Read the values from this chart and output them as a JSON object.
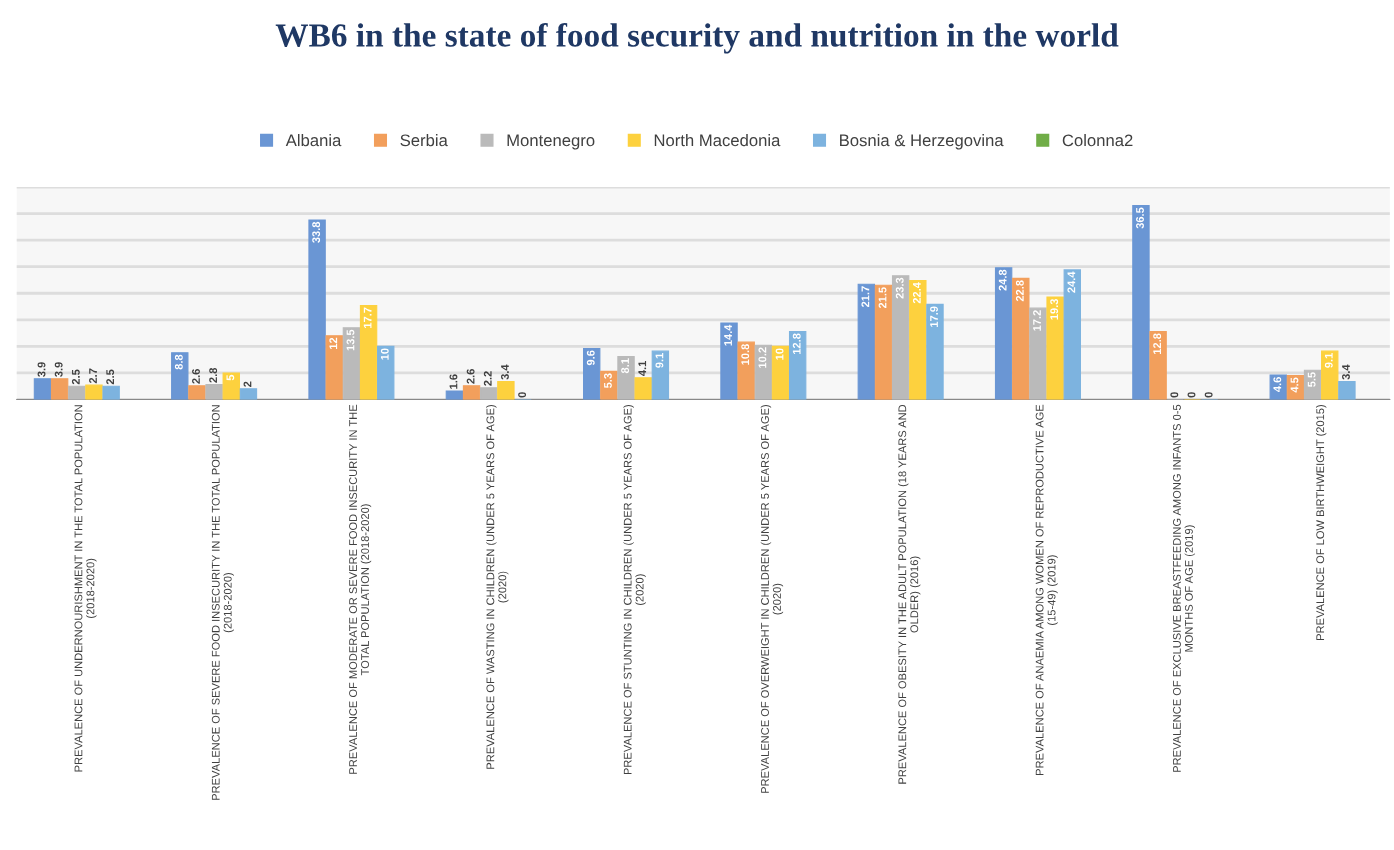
{
  "chart_data": {
    "type": "bar",
    "title": "WB6 in the state of food security and nutrition in the world",
    "categories": [
      "PREVALENCE OF UNDERNOURISHMENT IN THE TOTAL POPULATION\n(2018-2020)",
      "PREVALENCE OF SEVERE FOOD INSECURITY IN THE TOTAL POPULATION\n(2018-2020)",
      "PREVALENCE OF MODERATE OR SEVERE FOOD INSECURITY IN THE\nTOTAL POPULATION (2018-2020)",
      "PREVALENCE OF WASTING IN CHILDREN (UNDER 5 YEARS OF AGE)\n(2020)",
      "PREVALENCE OF STUNTING IN CHILDREN (UNDER 5 YEARS OF AGE)\n(2020)",
      "PREVALENCE OF OVERWEIGHT IN CHILDREN (UNDER 5 YEARS OF AGE)\n(2020)",
      "PREVALENCE OF OBESITY IN THE ADULT POPULATION (18 YEARS AND\nOLDER) (2016)",
      "PREVALENCE OF ANAEMIA AMONG WOMEN OF REPRODUCTIVE AGE\n(15-49) (2019)",
      "PREVALENCE OF EXCLUSIVE BREASTFEEDING AMONG INFANTS 0-5\nMONTHS OF AGE (2019)",
      "PREVALENCE OF LOW BIRTHWEIGHT (2015)"
    ],
    "series": [
      {
        "name": "Albania",
        "color": "#6a96d4",
        "values": [
          3.9,
          8.8,
          33.8,
          1.6,
          9.6,
          14.4,
          21.7,
          24.8,
          36.5,
          4.6
        ]
      },
      {
        "name": "Serbia",
        "color": "#f29f5c",
        "values": [
          3.9,
          2.6,
          12,
          2.6,
          5.3,
          10.8,
          21.5,
          22.8,
          12.8,
          4.5
        ]
      },
      {
        "name": "Montenegro",
        "color": "#bababa",
        "values": [
          2.5,
          2.8,
          13.5,
          2.2,
          8.1,
          10.2,
          23.3,
          17.2,
          0,
          5.5
        ]
      },
      {
        "name": "North Macedonia",
        "color": "#fdd13e",
        "values": [
          2.7,
          5,
          17.7,
          3.4,
          4.1,
          10,
          22.4,
          19.3,
          0,
          9.1
        ]
      },
      {
        "name": "Bosnia & Herzegovina",
        "color": "#7db3df",
        "values": [
          2.5,
          2,
          10,
          0,
          9.1,
          12.8,
          17.9,
          24.4,
          0,
          3.4
        ]
      },
      {
        "name": "Colonna2",
        "color": "#70ad47",
        "values": [
          null,
          null,
          null,
          null,
          null,
          null,
          null,
          null,
          null,
          null
        ]
      }
    ],
    "ylim": [
      0,
      40
    ],
    "yticks": [
      {
        "value": 0,
        "label": null
      },
      {
        "value": 5,
        "label": null
      },
      {
        "value": 10,
        "label": null
      },
      {
        "value": 15,
        "label": null
      },
      {
        "value": 20,
        "label": null
      },
      {
        "value": 25,
        "label": null
      },
      {
        "value": 30,
        "label": null
      },
      {
        "value": 35,
        "label": null
      },
      {
        "value": 40,
        "label": null
      }
    ],
    "tick_labels": "x",
    "grid": "y",
    "legend": "top",
    "data_labels": true
  }
}
